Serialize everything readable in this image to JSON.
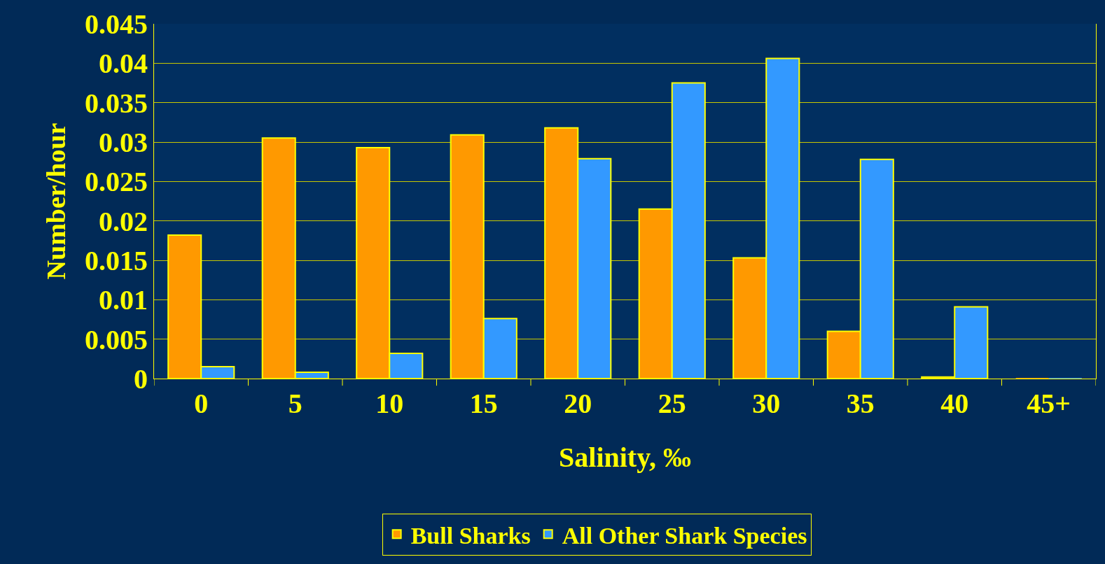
{
  "chart_data": {
    "type": "bar",
    "xlabel": "Salinity, ‰",
    "ylabel": "Number/hour",
    "categories": [
      "0",
      "5",
      "10",
      "15",
      "20",
      "25",
      "30",
      "35",
      "40",
      "45+"
    ],
    "series": [
      {
        "name": "Bull Sharks",
        "color": "#ff9900",
        "values": [
          0.0182,
          0.0305,
          0.0293,
          0.0309,
          0.0318,
          0.0215,
          0.0153,
          0.006,
          0.0002,
          0
        ]
      },
      {
        "name": "All Other Shark Species",
        "color": "#3399ff",
        "values": [
          0.0015,
          0.0008,
          0.0032,
          0.0076,
          0.0279,
          0.0375,
          0.0406,
          0.0278,
          0.0091,
          0
        ]
      }
    ],
    "ylim": [
      0,
      0.045
    ],
    "yticks": [
      0,
      0.005,
      0.01,
      0.015,
      0.02,
      0.025,
      0.03,
      0.035,
      0.04,
      0.045
    ],
    "grid": "y",
    "legend": "bottom"
  }
}
